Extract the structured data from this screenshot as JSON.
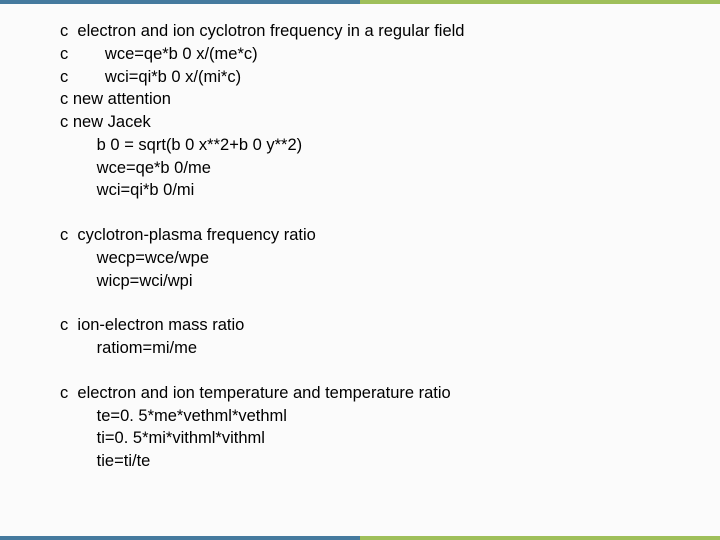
{
  "accents": {
    "color_a": "#457a9e",
    "color_b": "#9fbf5a"
  },
  "blocks": [
    [
      "c  electron and ion cyclotron frequency in a regular field",
      "c        wce=qe*b 0 x/(me*c)",
      "c        wci=qi*b 0 x/(mi*c)",
      "c new attention",
      "c new Jacek",
      "        b 0 = sqrt(b 0 x**2+b 0 y**2)",
      "        wce=qe*b 0/me",
      "        wci=qi*b 0/mi"
    ],
    [
      "c  cyclotron-plasma frequency ratio",
      "        wecp=wce/wpe",
      "        wicp=wci/wpi"
    ],
    [
      "c  ion-electron mass ratio",
      "        ratiom=mi/me"
    ],
    [
      "c  electron and ion temperature and temperature ratio",
      "        te=0. 5*me*vethml*vethml",
      "        ti=0. 5*mi*vithml*vithml",
      "        tie=ti/te"
    ]
  ]
}
